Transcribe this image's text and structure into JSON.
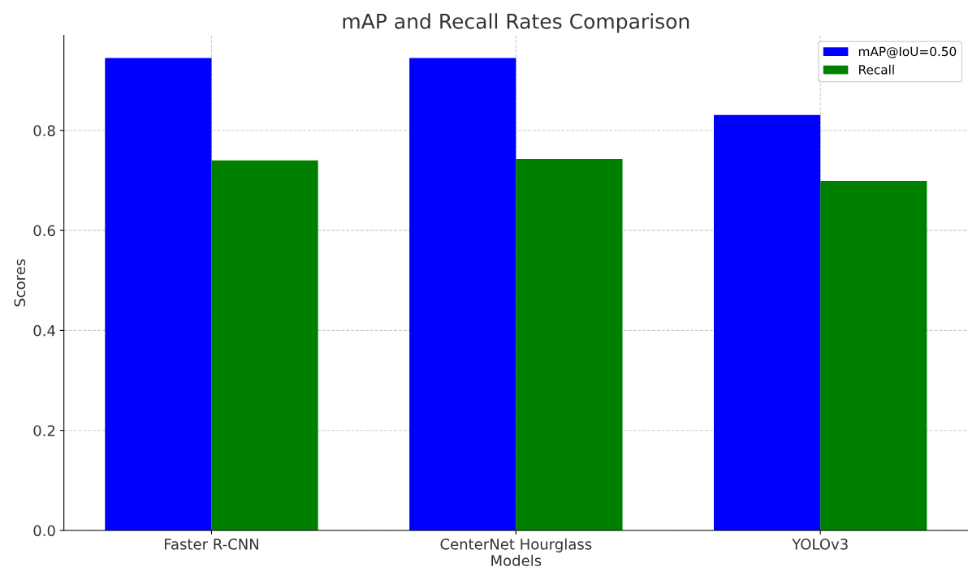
{
  "chart_data": {
    "type": "bar",
    "title": "mAP and Recall Rates Comparison",
    "xlabel": "Models",
    "ylabel": "Scores",
    "categories": [
      "Faster R-CNN",
      "CenterNet Hourglass",
      "YOLOv3"
    ],
    "series": [
      {
        "name": "mAP@IoU=0.50",
        "color": "#0000ff",
        "values": [
          0.945,
          0.945,
          0.831
        ]
      },
      {
        "name": "Recall",
        "color": "#008000",
        "values": [
          0.74,
          0.743,
          0.699
        ]
      }
    ],
    "ylim": [
      0,
      0.99
    ],
    "yticks": [
      {
        "value": 0,
        "label": "0.0"
      },
      0.2,
      0.4,
      0.6,
      0.8
    ],
    "grid": true,
    "legend": "top right"
  }
}
